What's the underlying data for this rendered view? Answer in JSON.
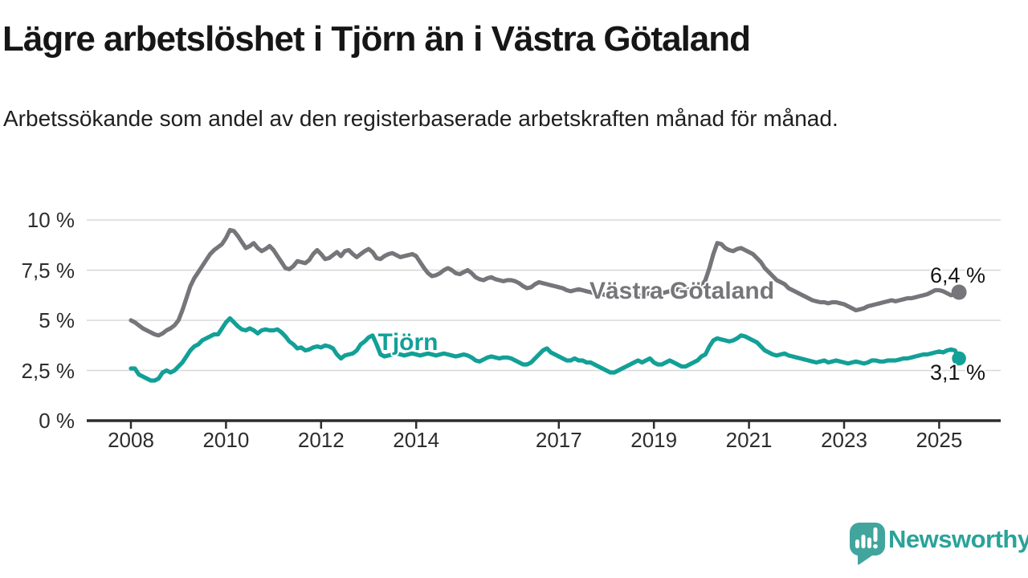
{
  "header": {
    "title": "Lägre arbetslöshet i Tjörn än i Västra Götaland",
    "subtitle": "Arbetssökande som andel av den registerbaserade arbetskraften månad för månad."
  },
  "branding": {
    "logo_text": "Newsworthy"
  },
  "colors": {
    "teal": "#12a097",
    "gray": "#76767a",
    "logo_teal": "#42a59d",
    "grid": "#d8d8d8",
    "axis": "#2d2d2d",
    "text": "#161616"
  },
  "chart_data": {
    "type": "line",
    "title": "Lägre arbetslöshet i Tjörn än i Västra Götaland",
    "subtitle": "Arbetssökande som andel av den registerbaserade arbetskraften månad för månad.",
    "x_unit": "month",
    "x_start": "2008-01",
    "x_end": "2025-06",
    "grid": true,
    "legend_position": "inline-labels",
    "ylim": [
      0,
      10.5
    ],
    "x_ticks": [
      {
        "value": 2008,
        "label": "2008"
      },
      {
        "value": 2010,
        "label": "2010"
      },
      {
        "value": 2012,
        "label": "2012"
      },
      {
        "value": 2014,
        "label": "2014"
      },
      {
        "value": 2017,
        "label": "2017"
      },
      {
        "value": 2019,
        "label": "2019"
      },
      {
        "value": 2021,
        "label": "2021"
      },
      {
        "value": 2023,
        "label": "2023"
      },
      {
        "value": 2025,
        "label": "2025"
      }
    ],
    "y_ticks": [
      {
        "value": 10,
        "label": "10 %"
      },
      {
        "value": 7.5,
        "label": "7,5 %"
      },
      {
        "value": 5,
        "label": "5 %"
      },
      {
        "value": 2.5,
        "label": "2,5 %"
      },
      {
        "value": 0,
        "label": "0 %"
      }
    ],
    "series": [
      {
        "name": "Västra Götaland",
        "color": "#76767a",
        "end_label": "6,4 %",
        "last_value": 6.4,
        "values": [
          5.0,
          4.9,
          4.75,
          4.6,
          4.5,
          4.4,
          4.3,
          4.25,
          4.35,
          4.5,
          4.6,
          4.75,
          5.0,
          5.5,
          6.1,
          6.7,
          7.1,
          7.4,
          7.7,
          8.0,
          8.3,
          8.5,
          8.65,
          8.8,
          9.1,
          9.5,
          9.45,
          9.2,
          8.9,
          8.6,
          8.7,
          8.85,
          8.6,
          8.45,
          8.55,
          8.7,
          8.5,
          8.2,
          7.9,
          7.6,
          7.55,
          7.7,
          7.95,
          7.9,
          7.85,
          8.0,
          8.3,
          8.5,
          8.3,
          8.05,
          8.1,
          8.25,
          8.4,
          8.2,
          8.45,
          8.5,
          8.3,
          8.15,
          8.3,
          8.45,
          8.55,
          8.4,
          8.1,
          8.05,
          8.2,
          8.3,
          8.35,
          8.25,
          8.15,
          8.2,
          8.25,
          8.3,
          8.2,
          7.9,
          7.6,
          7.35,
          7.2,
          7.25,
          7.35,
          7.5,
          7.6,
          7.5,
          7.35,
          7.3,
          7.4,
          7.5,
          7.35,
          7.15,
          7.05,
          7.0,
          7.1,
          7.15,
          7.05,
          7.0,
          6.95,
          7.0,
          7.0,
          6.95,
          6.85,
          6.7,
          6.6,
          6.65,
          6.8,
          6.9,
          6.85,
          6.8,
          6.75,
          6.7,
          6.65,
          6.6,
          6.5,
          6.45,
          6.5,
          6.55,
          6.5,
          6.45,
          6.4,
          6.35,
          6.3,
          6.3,
          6.25,
          6.2,
          6.2,
          6.15,
          6.2,
          6.25,
          6.3,
          6.25,
          6.2,
          6.25,
          6.3,
          6.35,
          6.4,
          6.4,
          6.35,
          6.4,
          6.45,
          6.5,
          6.55,
          6.5,
          6.5,
          6.55,
          6.6,
          6.65,
          6.7,
          7.0,
          7.6,
          8.3,
          8.85,
          8.8,
          8.6,
          8.5,
          8.45,
          8.55,
          8.6,
          8.5,
          8.4,
          8.3,
          8.1,
          7.9,
          7.6,
          7.4,
          7.2,
          7.0,
          6.9,
          6.8,
          6.6,
          6.5,
          6.4,
          6.3,
          6.2,
          6.1,
          6.0,
          5.95,
          5.9,
          5.9,
          5.85,
          5.9,
          5.9,
          5.85,
          5.8,
          5.7,
          5.6,
          5.5,
          5.55,
          5.6,
          5.7,
          5.75,
          5.8,
          5.85,
          5.9,
          5.95,
          6.0,
          5.95,
          6.0,
          6.05,
          6.1,
          6.1,
          6.15,
          6.2,
          6.25,
          6.3,
          6.4,
          6.5,
          6.5,
          6.45,
          6.35,
          6.25,
          6.3,
          6.4
        ]
      },
      {
        "name": "Tjörn",
        "color": "#12a097",
        "end_label": "3,1 %",
        "last_value": 3.1,
        "values": [
          2.6,
          2.6,
          2.3,
          2.2,
          2.1,
          2.0,
          2.0,
          2.1,
          2.4,
          2.5,
          2.4,
          2.5,
          2.7,
          2.9,
          3.2,
          3.5,
          3.7,
          3.8,
          4.0,
          4.1,
          4.2,
          4.3,
          4.3,
          4.6,
          4.9,
          5.1,
          4.9,
          4.7,
          4.55,
          4.5,
          4.6,
          4.5,
          4.35,
          4.5,
          4.55,
          4.5,
          4.5,
          4.55,
          4.4,
          4.2,
          3.95,
          3.8,
          3.6,
          3.65,
          3.5,
          3.55,
          3.65,
          3.7,
          3.65,
          3.75,
          3.7,
          3.6,
          3.3,
          3.1,
          3.25,
          3.3,
          3.35,
          3.5,
          3.8,
          3.95,
          4.15,
          4.25,
          3.8,
          3.3,
          3.2,
          3.25,
          3.3,
          3.35,
          3.3,
          3.25,
          3.3,
          3.35,
          3.3,
          3.25,
          3.3,
          3.35,
          3.3,
          3.25,
          3.3,
          3.35,
          3.3,
          3.25,
          3.2,
          3.25,
          3.3,
          3.25,
          3.15,
          3.0,
          2.95,
          3.05,
          3.15,
          3.2,
          3.15,
          3.1,
          3.15,
          3.15,
          3.1,
          3.0,
          2.9,
          2.8,
          2.8,
          2.9,
          3.1,
          3.3,
          3.5,
          3.6,
          3.4,
          3.3,
          3.2,
          3.1,
          3.0,
          3.0,
          3.1,
          3.0,
          3.0,
          2.9,
          2.9,
          2.8,
          2.7,
          2.6,
          2.5,
          2.4,
          2.4,
          2.5,
          2.6,
          2.7,
          2.8,
          2.9,
          3.0,
          2.9,
          3.0,
          3.1,
          2.9,
          2.8,
          2.8,
          2.9,
          3.0,
          2.9,
          2.8,
          2.7,
          2.7,
          2.8,
          2.9,
          3.0,
          3.2,
          3.3,
          3.7,
          4.0,
          4.1,
          4.05,
          4.0,
          3.95,
          4.0,
          4.1,
          4.25,
          4.2,
          4.1,
          4.0,
          3.9,
          3.7,
          3.5,
          3.4,
          3.3,
          3.25,
          3.3,
          3.35,
          3.25,
          3.2,
          3.15,
          3.1,
          3.05,
          3.0,
          2.95,
          2.9,
          2.95,
          3.0,
          2.9,
          2.95,
          3.0,
          2.95,
          2.9,
          2.85,
          2.9,
          2.95,
          2.9,
          2.85,
          2.9,
          3.0,
          3.0,
          2.95,
          2.95,
          3.0,
          3.0,
          3.0,
          3.05,
          3.1,
          3.1,
          3.15,
          3.2,
          3.25,
          3.3,
          3.3,
          3.35,
          3.4,
          3.45,
          3.4,
          3.5,
          3.55,
          3.5,
          3.1
        ]
      }
    ]
  }
}
